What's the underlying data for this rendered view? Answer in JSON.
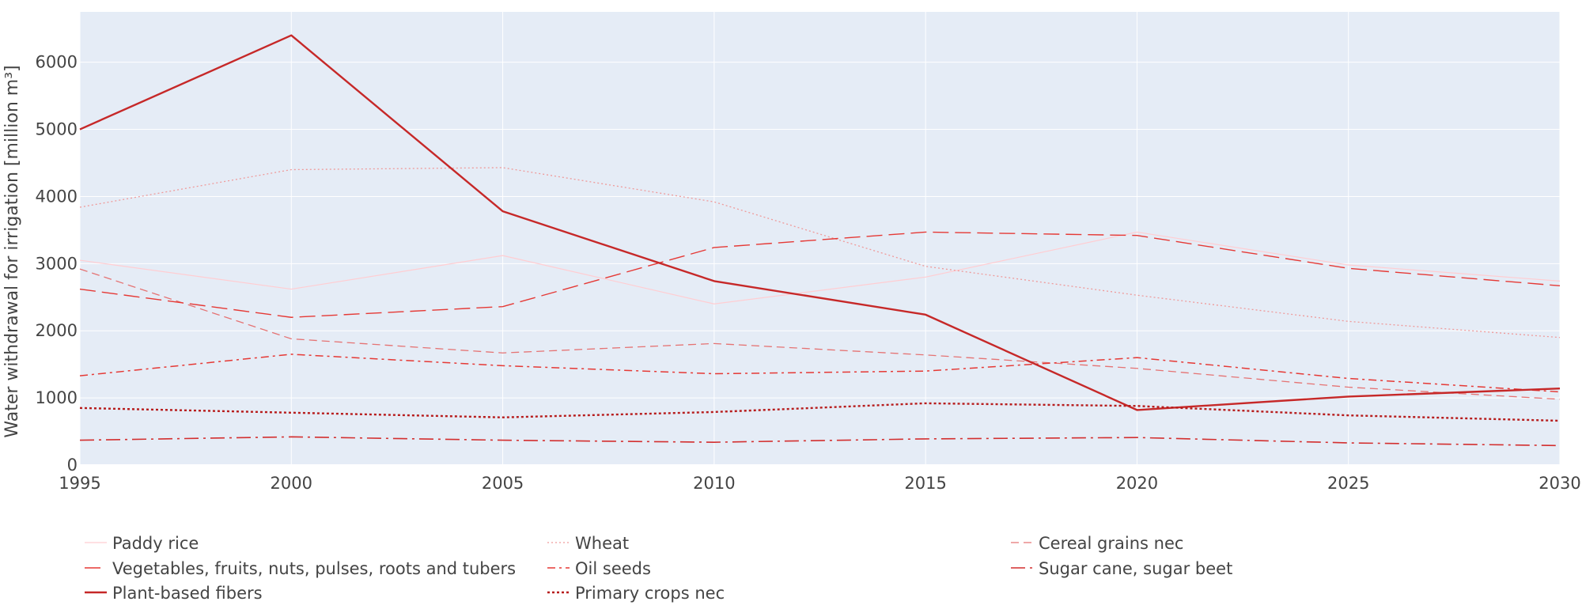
{
  "chart_data": {
    "type": "line",
    "title": "",
    "xlabel": "",
    "ylabel": "Water withdrawal for irrigation [million  m³]",
    "xlim": [
      1995,
      2030
    ],
    "ylim": [
      0,
      6750
    ],
    "x": [
      1995,
      2000,
      2005,
      2010,
      2015,
      2020,
      2025,
      2030
    ],
    "x_ticks": [
      1995,
      2000,
      2005,
      2010,
      2015,
      2020,
      2025,
      2030
    ],
    "y_ticks": [
      0,
      1000,
      2000,
      3000,
      4000,
      5000,
      6000
    ],
    "grid": true,
    "legend_position": "bottom",
    "plot_background": "#e5ecf6",
    "series": [
      {
        "name": "Paddy rice",
        "color": "#ffcdd2",
        "dash": "solid",
        "width": 1.2,
        "values": [
          3050,
          2620,
          3120,
          2400,
          2800,
          3470,
          2980,
          2740
        ]
      },
      {
        "name": "Wheat",
        "color": "#ef9a9a",
        "dash": "dot",
        "width": 1.3,
        "values": [
          3840,
          4400,
          4430,
          3920,
          2960,
          2530,
          2140,
          1900
        ]
      },
      {
        "name": "Cereal grains nec",
        "color": "#e57373",
        "dash": "dash",
        "width": 1.3,
        "values": [
          2920,
          1880,
          1670,
          1810,
          1640,
          1440,
          1160,
          980
        ]
      },
      {
        "name": "Vegetables, fruits, nuts, pulses, roots and tubers",
        "color": "#e53935",
        "dash": "longdash",
        "width": 1.4,
        "values": [
          2620,
          2200,
          2360,
          3240,
          3470,
          3420,
          2930,
          2670
        ]
      },
      {
        "name": "Oil seeds",
        "color": "#e53935",
        "dash": "dashdot",
        "width": 1.5,
        "values": [
          1330,
          1650,
          1480,
          1360,
          1400,
          1600,
          1290,
          1090
        ]
      },
      {
        "name": "Sugar cane, sugar beet",
        "color": "#d32f2f",
        "dash": "longdashdot",
        "width": 1.6,
        "values": [
          370,
          420,
          370,
          340,
          390,
          410,
          330,
          290
        ]
      },
      {
        "name": "Plant-based fibers",
        "color": "#c62828",
        "dash": "solid",
        "width": 2.4,
        "values": [
          5000,
          6400,
          3780,
          2740,
          2240,
          820,
          1020,
          1140
        ]
      },
      {
        "name": "Primary crops nec",
        "color": "#b71c1c",
        "dash": "dot",
        "width": 2.4,
        "values": [
          850,
          780,
          710,
          790,
          920,
          880,
          740,
          660
        ]
      }
    ]
  }
}
